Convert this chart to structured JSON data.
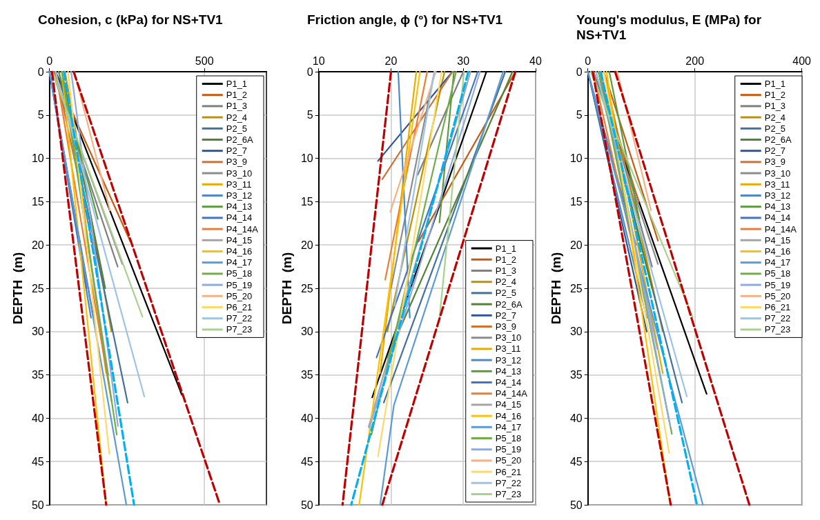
{
  "chart_data": [
    {
      "type": "line",
      "title": "Cohesion, c (kPa) for NS+TV1",
      "ylabel": "DEPTH  (m)",
      "xlim": [
        0,
        700
      ],
      "xticks": [
        0,
        500
      ],
      "ylim": [
        50,
        0
      ],
      "yticks": [
        0,
        5,
        10,
        15,
        20,
        25,
        30,
        35,
        40,
        45,
        50
      ],
      "grid": true,
      "legend": "top right",
      "marker": "none",
      "series": [
        {
          "name": "P1_1",
          "color": "#000000",
          "x": [
            20,
            427
          ],
          "values": [
            0,
            37.3
          ]
        },
        {
          "name": "P1_2",
          "color": "#c55a11",
          "x": [
            15,
            261
          ],
          "values": [
            0,
            19.6
          ]
        },
        {
          "name": "P1_3",
          "color": "#7f7f7f",
          "x": [
            10,
            220
          ],
          "values": [
            0,
            22.5
          ]
        },
        {
          "name": "P2_4",
          "color": "#bf9000",
          "x": [
            50,
            200
          ],
          "values": [
            0,
            30
          ]
        },
        {
          "name": "P2_5",
          "color": "#41719c",
          "x": [
            30,
            252
          ],
          "values": [
            0,
            38.2
          ]
        },
        {
          "name": "P2_6A",
          "color": "#548235",
          "x": [
            40,
            180
          ],
          "values": [
            0,
            25
          ]
        },
        {
          "name": "P2_7",
          "color": "#2f5597",
          "x": [
            0,
            150
          ],
          "values": [
            0,
            30
          ]
        },
        {
          "name": "P3_9",
          "color": "#d0702f",
          "x": [
            20,
            140
          ],
          "values": [
            0,
            20
          ]
        },
        {
          "name": "P3_10",
          "color": "#8c8c8c",
          "x": [
            10,
            235
          ],
          "values": [
            0,
            22.2
          ]
        },
        {
          "name": "P3_11",
          "color": "#e6ac00",
          "x": [
            50,
            183
          ],
          "values": [
            0,
            34.8
          ]
        },
        {
          "name": "P3_12",
          "color": "#4e89c6",
          "x": [
            0,
            134
          ],
          "values": [
            0,
            28.4
          ]
        },
        {
          "name": "P4_13",
          "color": "#5b9a3c",
          "x": [
            30,
            156
          ],
          "values": [
            0,
            17
          ]
        },
        {
          "name": "P4_14",
          "color": "#4472c4",
          "x": [
            0,
            120
          ],
          "values": [
            0,
            25
          ]
        },
        {
          "name": "P4_14A",
          "color": "#ed7d31",
          "x": [
            20,
            200
          ],
          "values": [
            0,
            38
          ]
        },
        {
          "name": "P4_15",
          "color": "#a5a5a5",
          "x": [
            40,
            190
          ],
          "values": [
            0,
            35
          ]
        },
        {
          "name": "P4_16",
          "color": "#ffc000",
          "x": [
            40,
            183
          ],
          "values": [
            0,
            50
          ]
        },
        {
          "name": "P4_17",
          "color": "#5b9bd5",
          "x": [
            0,
            248
          ],
          "values": [
            0,
            50
          ]
        },
        {
          "name": "P5_18",
          "color": "#70ad47",
          "x": [
            40,
            217
          ],
          "values": [
            0,
            41.9
          ]
        },
        {
          "name": "P5_19",
          "color": "#8faadc",
          "x": [
            70,
            221
          ],
          "values": [
            0,
            40.9
          ]
        },
        {
          "name": "P5_20",
          "color": "#f4b183",
          "x": [
            80,
            195
          ],
          "values": [
            0,
            16
          ]
        },
        {
          "name": "P6_21",
          "color": "#ffd966",
          "x": [
            60,
            193
          ],
          "values": [
            0,
            44.1
          ]
        },
        {
          "name": "P7_22",
          "color": "#9dc3e6",
          "x": [
            20,
            306
          ],
          "values": [
            0,
            37.5
          ]
        },
        {
          "name": "P7_23",
          "color": "#a9d18e",
          "x": [
            10,
            300
          ],
          "values": [
            0,
            28.3
          ]
        },
        {
          "color": "#c00000",
          "line_style": "dashed",
          "x": [
            8,
            183
          ],
          "values": [
            0,
            50
          ]
        },
        {
          "color": "#00b0f0",
          "line_style": "dashed",
          "x": [
            47,
            273
          ],
          "values": [
            0,
            50
          ]
        },
        {
          "color": "#c00000",
          "line_style": "dashed",
          "x": [
            78,
            550
          ],
          "values": [
            0,
            50
          ]
        }
      ]
    },
    {
      "type": "line",
      "title": "Friction angle, ϕ (°) for NS+TV1",
      "ylabel": "DEPTH  (m)",
      "xlim": [
        10,
        40
      ],
      "xticks": [
        10,
        20,
        30,
        40
      ],
      "ylim": [
        50,
        0
      ],
      "yticks": [
        0,
        5,
        10,
        15,
        20,
        25,
        30,
        35,
        40,
        45,
        50
      ],
      "grid": true,
      "legend": "bottom right",
      "marker": "none",
      "series": [
        {
          "name": "P1_1",
          "color": "#000000",
          "x": [
            33.2,
            17.4
          ],
          "values": [
            0,
            37.6
          ]
        },
        {
          "name": "P1_2",
          "color": "#c55a11",
          "x": [
            37.2,
            23.8
          ],
          "values": [
            0,
            19.6
          ]
        },
        {
          "name": "P1_3",
          "color": "#7f7f7f",
          "x": [
            30,
            23.7
          ],
          "values": [
            0,
            11.9
          ]
        },
        {
          "name": "P2_4",
          "color": "#bf9000",
          "x": [
            27.4,
            19.5
          ],
          "values": [
            0,
            30
          ]
        },
        {
          "name": "P2_5",
          "color": "#41719c",
          "x": [
            35.8,
            19
          ],
          "values": [
            0,
            38.2
          ]
        },
        {
          "name": "P2_6A",
          "color": "#548235",
          "x": [
            36.8,
            19.5
          ],
          "values": [
            0,
            33
          ]
        },
        {
          "name": "P2_7",
          "color": "#2f5597",
          "x": [
            28.5,
            18.2
          ],
          "values": [
            0,
            10.3
          ]
        },
        {
          "name": "P3_9",
          "color": "#d0702f",
          "x": [
            28.5,
            18.8
          ],
          "values": [
            0,
            12.4
          ]
        },
        {
          "name": "P3_10",
          "color": "#8c8c8c",
          "x": [
            26,
            20
          ],
          "values": [
            0,
            25
          ]
        },
        {
          "name": "P3_11",
          "color": "#e6ac00",
          "x": [
            23.5,
            18.5
          ],
          "values": [
            0,
            34.8
          ]
        },
        {
          "name": "P3_12",
          "color": "#4e89c6",
          "x": [
            21,
            22.6
          ],
          "values": [
            0,
            28.4
          ]
        },
        {
          "name": "P4_13",
          "color": "#5b9a3c",
          "x": [
            28.7,
            26.7
          ],
          "values": [
            0,
            17.4
          ]
        },
        {
          "name": "P4_14",
          "color": "#4472c4",
          "x": [
            32,
            18
          ],
          "values": [
            0,
            33
          ]
        },
        {
          "name": "P4_14A",
          "color": "#ed7d31",
          "x": [
            25,
            19.2
          ],
          "values": [
            0,
            24
          ]
        },
        {
          "name": "P4_15",
          "color": "#a5a5a5",
          "x": [
            31,
            16.9
          ],
          "values": [
            0,
            41
          ]
        },
        {
          "name": "P4_16",
          "color": "#ffc000",
          "x": [
            24,
            15.6
          ],
          "values": [
            0,
            50
          ]
        },
        {
          "name": "P4_17",
          "color": "#5b9bd5",
          "x": [
            35.5,
            20.4,
            18.5
          ],
          "values": [
            0,
            38.5,
            50
          ]
        },
        {
          "name": "P5_18",
          "color": "#70ad47",
          "x": [
            29,
            17.3
          ],
          "values": [
            0,
            41.9
          ]
        },
        {
          "name": "P5_19",
          "color": "#8faadc",
          "x": [
            32.3,
            17
          ],
          "values": [
            0,
            41.1
          ]
        },
        {
          "name": "P5_20",
          "color": "#f4b183",
          "x": [
            26.2,
            19.9
          ],
          "values": [
            0,
            16.2
          ]
        },
        {
          "name": "P6_21",
          "color": "#ffd966",
          "x": [
            27,
            18.2
          ],
          "values": [
            0,
            44.4
          ]
        },
        {
          "name": "P7_22",
          "color": "#9dc3e6",
          "x": [
            26,
            20.5
          ],
          "values": [
            0,
            27
          ]
        },
        {
          "name": "P7_23",
          "color": "#a9d18e",
          "x": [
            30.1,
            26.7
          ],
          "values": [
            0,
            28.5
          ]
        },
        {
          "color": "#c00000",
          "line_style": "dashed",
          "x": [
            20,
            13.3
          ],
          "values": [
            0,
            50
          ]
        },
        {
          "color": "#00b0f0",
          "line_style": "dashed",
          "x": [
            30.7,
            14.5
          ],
          "values": [
            0,
            50
          ]
        },
        {
          "color": "#c00000",
          "line_style": "dashed",
          "x": [
            37.2,
            18.8
          ],
          "values": [
            0,
            50
          ]
        }
      ]
    },
    {
      "type": "line",
      "title": "Young's modulus, E (MPa) for NS+TV1",
      "ylabel": "DEPTH  (m)",
      "xlim": [
        0,
        400
      ],
      "xticks": [
        0,
        200,
        400
      ],
      "ylim": [
        50,
        0
      ],
      "yticks": [
        0,
        5,
        10,
        15,
        20,
        25,
        30,
        35,
        40,
        45,
        50
      ],
      "grid": true,
      "legend": "top right",
      "marker": "none",
      "series": [
        {
          "name": "P1_1",
          "color": "#000000",
          "x": [
            10,
            222
          ],
          "values": [
            0,
            37.2
          ]
        },
        {
          "name": "P1_2",
          "color": "#c55a11",
          "x": [
            30,
            131
          ],
          "values": [
            0,
            19.5
          ]
        },
        {
          "name": "P1_3",
          "color": "#7f7f7f",
          "x": [
            20,
            120
          ],
          "values": [
            0,
            22.5
          ]
        },
        {
          "name": "P2_4",
          "color": "#bf9000",
          "x": [
            30,
            140
          ],
          "values": [
            0,
            30
          ]
        },
        {
          "name": "P2_5",
          "color": "#41719c",
          "x": [
            15,
            176
          ],
          "values": [
            0,
            38.2
          ]
        },
        {
          "name": "P2_6A",
          "color": "#548235",
          "x": [
            20,
            120
          ],
          "values": [
            0,
            25
          ]
        },
        {
          "name": "P2_7",
          "color": "#2f5597",
          "x": [
            0,
            110
          ],
          "values": [
            0,
            30
          ]
        },
        {
          "name": "P3_9",
          "color": "#d0702f",
          "x": [
            20,
            95
          ],
          "values": [
            0,
            15
          ]
        },
        {
          "name": "P3_10",
          "color": "#8c8c8c",
          "x": [
            10,
            131
          ],
          "values": [
            0,
            22.2
          ]
        },
        {
          "name": "P3_11",
          "color": "#e6ac00",
          "x": [
            30,
            140
          ],
          "values": [
            0,
            34.8
          ]
        },
        {
          "name": "P3_12",
          "color": "#4e89c6",
          "x": [
            0,
            110
          ],
          "values": [
            0,
            28.4
          ]
        },
        {
          "name": "P4_13",
          "color": "#5b9a3c",
          "x": [
            40,
            96
          ],
          "values": [
            0,
            17
          ]
        },
        {
          "name": "P4_14",
          "color": "#4472c4",
          "x": [
            0,
            90
          ],
          "values": [
            0,
            20
          ]
        },
        {
          "name": "P4_14A",
          "color": "#ed7d31",
          "x": [
            10,
            120
          ],
          "values": [
            0,
            30
          ]
        },
        {
          "name": "P4_15",
          "color": "#a5a5a5",
          "x": [
            20,
            130
          ],
          "values": [
            0,
            32
          ]
        },
        {
          "name": "P4_16",
          "color": "#ffc000",
          "x": [
            35,
            154
          ],
          "values": [
            0,
            50
          ]
        },
        {
          "name": "P4_17",
          "color": "#5b9bd5",
          "x": [
            0,
            215
          ],
          "values": [
            0,
            50
          ]
        },
        {
          "name": "P5_18",
          "color": "#70ad47",
          "x": [
            20,
            157
          ],
          "values": [
            0,
            41.8
          ]
        },
        {
          "name": "P5_19",
          "color": "#8faadc",
          "x": [
            25,
            154
          ],
          "values": [
            0,
            40.9
          ]
        },
        {
          "name": "P5_20",
          "color": "#f4b183",
          "x": [
            55,
            118
          ],
          "values": [
            0,
            16
          ]
        },
        {
          "name": "P6_21",
          "color": "#ffd966",
          "x": [
            30,
            152
          ],
          "values": [
            0,
            44
          ]
        },
        {
          "name": "P7_22",
          "color": "#9dc3e6",
          "x": [
            15,
            185
          ],
          "values": [
            0,
            37.5
          ]
        },
        {
          "name": "P7_23",
          "color": "#a9d18e",
          "x": [
            5,
            196
          ],
          "values": [
            0,
            28.3
          ]
        },
        {
          "color": "#c00000",
          "line_style": "dashed",
          "x": [
            9,
            155
          ],
          "values": [
            0,
            50
          ]
        },
        {
          "color": "#00b0f0",
          "line_style": "dashed",
          "x": [
            24,
            204
          ],
          "values": [
            0,
            50
          ]
        },
        {
          "color": "#c00000",
          "line_style": "dashed",
          "x": [
            51,
            302
          ],
          "values": [
            0,
            50
          ]
        }
      ]
    }
  ]
}
